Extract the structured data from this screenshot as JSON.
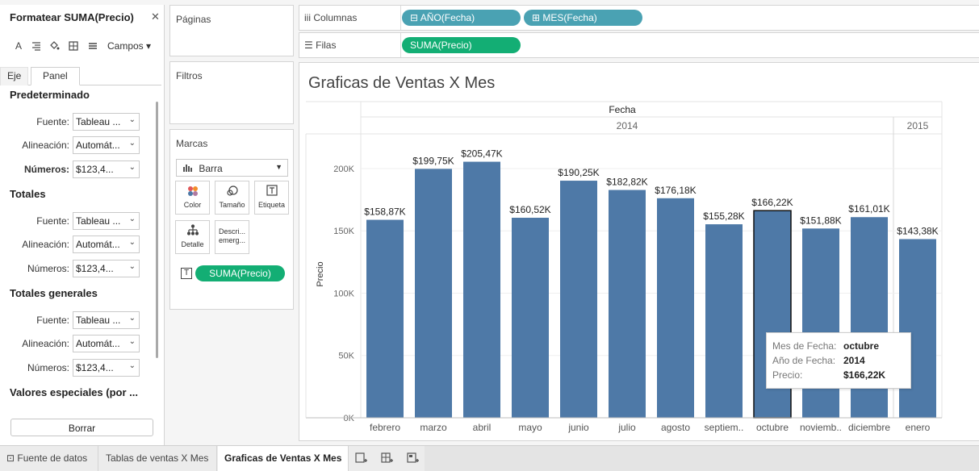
{
  "format_panel": {
    "title": "Formatear SUMA(Precio)",
    "close_label": "✕",
    "toolbar": {
      "icons": [
        "text-icon",
        "align-icon",
        "fill-icon",
        "borders-icon",
        "lines-icon"
      ],
      "campos_label": "Campos"
    },
    "tabs": [
      {
        "label": "Eje"
      },
      {
        "label": "Panel"
      }
    ],
    "sections": [
      {
        "title": "Predeterminado",
        "fields": [
          {
            "label": "Fuente:",
            "value": "Tableau ..."
          },
          {
            "label": "Alineación:",
            "value": "Automát..."
          },
          {
            "label": "Números:",
            "value": "$123,4...",
            "bold": true
          }
        ]
      },
      {
        "title": "Totales",
        "fields": [
          {
            "label": "Fuente:",
            "value": "Tableau ..."
          },
          {
            "label": "Alineación:",
            "value": "Automát..."
          },
          {
            "label": "Números:",
            "value": "$123,4..."
          }
        ]
      },
      {
        "title": "Totales generales",
        "fields": [
          {
            "label": "Fuente:",
            "value": "Tableau ..."
          },
          {
            "label": "Alineación:",
            "value": "Automát..."
          },
          {
            "label": "Números:",
            "value": "$123,4..."
          }
        ]
      },
      {
        "title": "Valores especiales (por ...",
        "fields": []
      }
    ],
    "clear_button": "Borrar"
  },
  "shelves": {
    "paginas": "Páginas",
    "filtros": "Filtros",
    "marcas": {
      "title": "Marcas",
      "mark_type": "Barra",
      "buttons": [
        {
          "label": "Color",
          "icon": "color-icon"
        },
        {
          "label": "Tamaño",
          "icon": "size-icon"
        },
        {
          "label": "Etiqueta",
          "icon": "label-icon"
        },
        {
          "label": "Detalle",
          "icon": "detail-icon"
        },
        {
          "label": "Descri... emerg...",
          "icon": "tooltip-icon"
        }
      ],
      "pill": "SUMA(Precio)"
    },
    "columnas": {
      "label": "Columnas",
      "pills": [
        "AÑO(Fecha)",
        "MES(Fecha)"
      ]
    },
    "filas": {
      "label": "Filas",
      "pills": [
        "SUMA(Precio)"
      ]
    }
  },
  "colors": {
    "bar": "#4e79a7",
    "pill_green": "#13ae74",
    "pill_blue": "#4aa2b3"
  },
  "chart_data": {
    "type": "bar",
    "title": "Graficas de Ventas X Mes",
    "header_label": "Fecha",
    "years": [
      {
        "label": "2014",
        "count": 11
      },
      {
        "label": "2015",
        "count": 1
      }
    ],
    "categories": [
      "febrero",
      "marzo",
      "abril",
      "mayo",
      "junio",
      "julio",
      "agosto",
      "septiem..",
      "octubre",
      "noviemb..",
      "diciembre",
      "enero"
    ],
    "values": [
      158870,
      199750,
      205470,
      160520,
      190250,
      182820,
      176180,
      155280,
      166220,
      151880,
      161010,
      143380
    ],
    "value_labels": [
      "$158,87K",
      "$199,75K",
      "$205,47K",
      "$160,52K",
      "$190,25K",
      "$182,82K",
      "$176,18K",
      "$155,28K",
      "$166,22K",
      "$151,88K",
      "$161,01K",
      "$143,38K"
    ],
    "ylabel": "Precio",
    "yticks": [
      {
        "value": 0,
        "label": "0K"
      },
      {
        "value": 50000,
        "label": "50K"
      },
      {
        "value": 100000,
        "label": "100K"
      },
      {
        "value": 150000,
        "label": "150K"
      },
      {
        "value": 200000,
        "label": "200K"
      }
    ],
    "ylim": [
      0,
      222000
    ],
    "selected_index": 8,
    "tooltip": {
      "rows": [
        {
          "key": "Mes de Fecha:",
          "value": "octubre"
        },
        {
          "key": "Año de Fecha:",
          "value": "2014"
        },
        {
          "key": "Precio:",
          "value": "$166,22K"
        }
      ]
    }
  },
  "bottom_tabs": {
    "source": "Fuente de datos",
    "sheets": [
      {
        "label": "Tablas de ventas X Mes"
      },
      {
        "label": "Graficas de Ventas X Mes",
        "active": true
      }
    ],
    "icons": [
      "new-worksheet-icon",
      "new-dashboard-icon",
      "new-story-icon"
    ]
  }
}
